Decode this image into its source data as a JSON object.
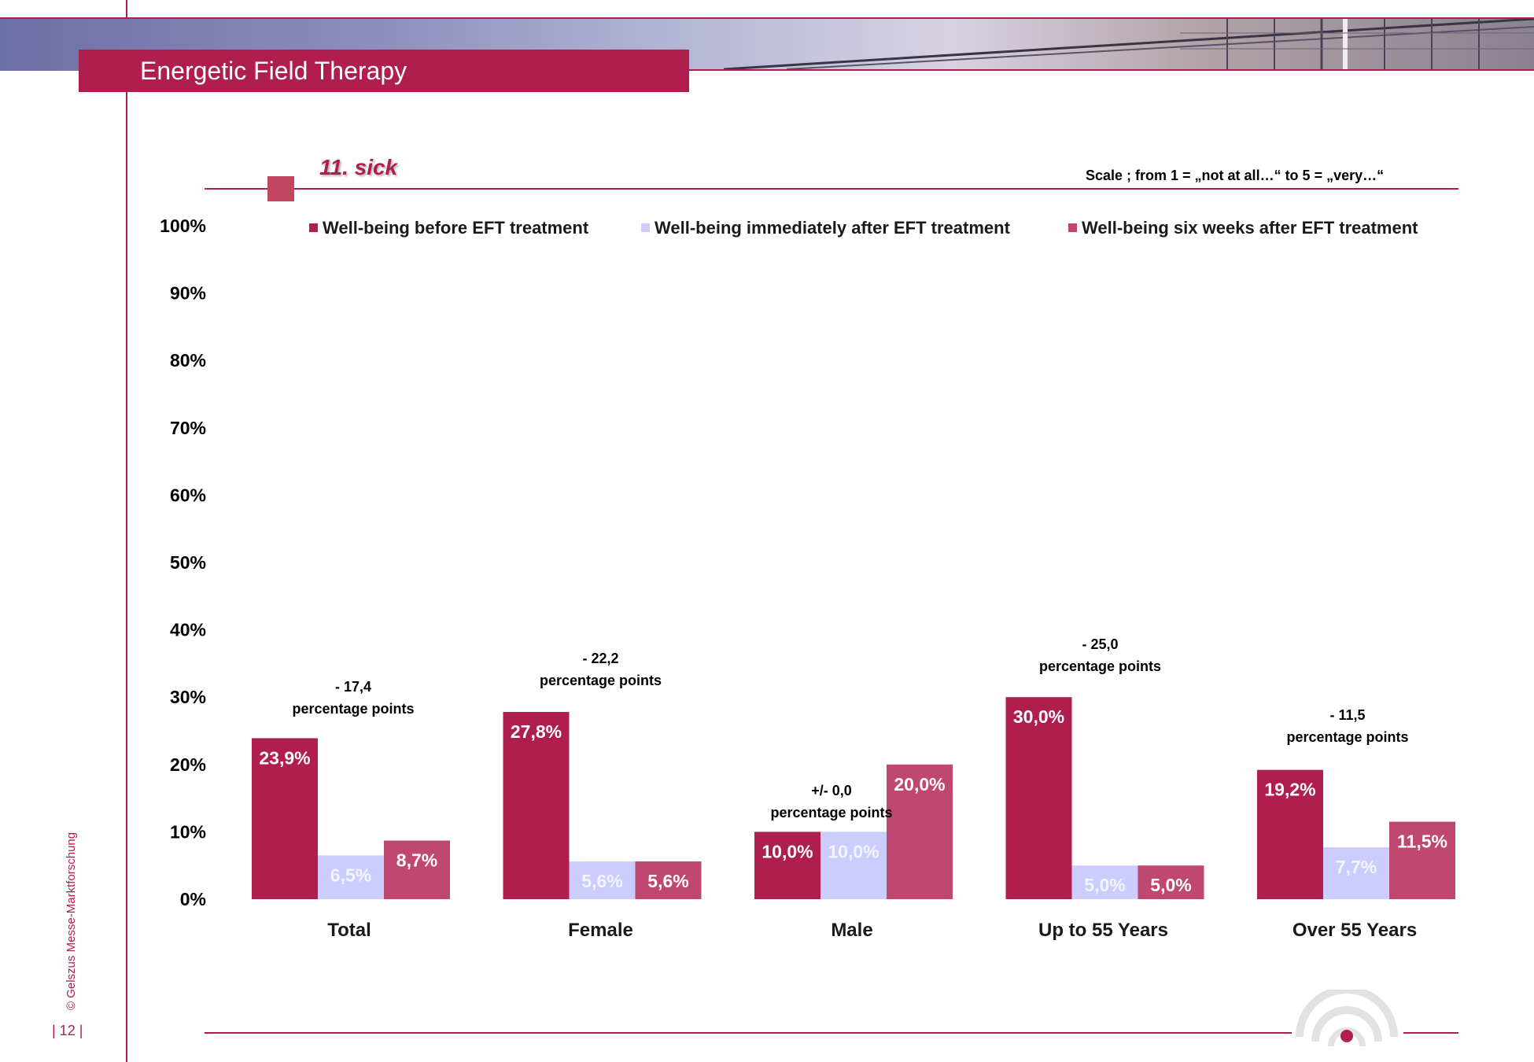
{
  "header": {
    "title": "Energetic Field Therapy"
  },
  "subtitle": "11. sick",
  "scale_note": "Scale ; from 1 = „not at all…“  to 5 = „very…“",
  "footer": {
    "credit": "© Gelszus Messe-Marktforschung",
    "page": "| 12 |"
  },
  "colors": {
    "accent": "#b01e4e",
    "series_before": "#b01e4e",
    "series_after": "#ccccff",
    "series_six_weeks": "#c0476f"
  },
  "chart_data": {
    "type": "bar",
    "categories": [
      "Total",
      "Female",
      "Male",
      "Up to 55 Years",
      "Over 55 Years"
    ],
    "series": [
      {
        "name": "Well-being before EFT treatment",
        "values": [
          23.9,
          27.8,
          10.0,
          30.0,
          19.2
        ],
        "labels": [
          "23,9%",
          "27,8%",
          "10,0%",
          "30,0%",
          "19,2%"
        ]
      },
      {
        "name": "Well-being immediately after EFT treatment",
        "values": [
          6.5,
          5.6,
          10.0,
          5.0,
          7.7
        ],
        "labels": [
          "6,5%",
          "5,6%",
          "10,0%",
          "5,0%",
          "7,7%"
        ]
      },
      {
        "name": "Well-being six weeks after EFT treatment",
        "values": [
          8.7,
          5.6,
          20.0,
          5.0,
          11.5
        ],
        "labels": [
          "8,7%",
          "5,6%",
          "20,0%",
          "5,0%",
          "11,5%"
        ]
      }
    ],
    "ylim": [
      0,
      100
    ],
    "y_ticks": [
      "0%",
      "10%",
      "20%",
      "30%",
      "40%",
      "50%",
      "60%",
      "70%",
      "80%",
      "90%",
      "100%"
    ],
    "legend_position": "top",
    "grid": false,
    "annotations": [
      {
        "category": "Total",
        "line1": "- 17,4",
        "line2": "percentage points"
      },
      {
        "category": "Female",
        "line1": "- 22,2",
        "line2": "percentage points"
      },
      {
        "category": "Male",
        "line1": "+/- 0,0",
        "line2": "percentage points"
      },
      {
        "category": "Up to 55 Years",
        "line1": "- 25,0",
        "line2": "percentage points"
      },
      {
        "category": "Over 55 Years",
        "line1": "- 11,5",
        "line2": "percentage points"
      }
    ]
  }
}
